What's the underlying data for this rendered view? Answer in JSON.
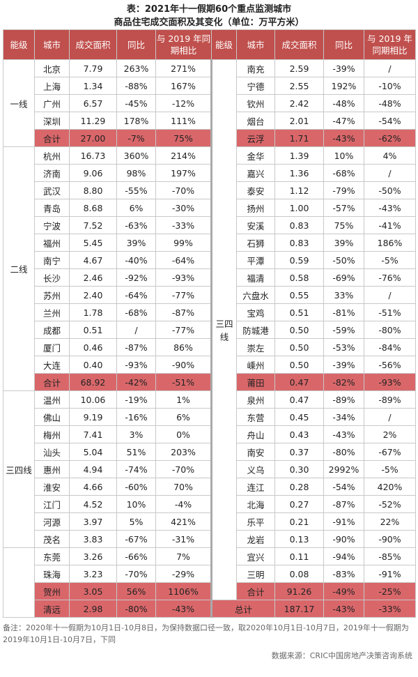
{
  "title": [
    "表：2021年十一假期60个重点监测城市",
    "商品住宅成交面积及其变化（单位：万平方米）"
  ],
  "header": [
    "能级",
    "城市",
    "成交面积",
    "同比",
    "与 2019 年同期相比"
  ],
  "left_groups": [
    {
      "level": "一线",
      "rows": [
        [
          "北京",
          "7.79",
          "263%",
          "271%"
        ],
        [
          "上海",
          "1.34",
          "-88%",
          "167%"
        ],
        [
          "广州",
          "6.57",
          "-45%",
          "-12%"
        ],
        [
          "深圳",
          "11.29",
          "178%",
          "111%"
        ]
      ],
      "subtotal": [
        "合计",
        "27.00",
        "-7%",
        "75%"
      ]
    },
    {
      "level": "二线",
      "rows": [
        [
          "杭州",
          "16.73",
          "360%",
          "214%"
        ],
        [
          "济南",
          "9.06",
          "98%",
          "197%"
        ],
        [
          "武汉",
          "8.80",
          "-55%",
          "-70%"
        ],
        [
          "青岛",
          "8.68",
          "6%",
          "-30%"
        ],
        [
          "宁波",
          "7.52",
          "-63%",
          "-33%"
        ],
        [
          "福州",
          "5.45",
          "39%",
          "99%"
        ],
        [
          "南宁",
          "4.67",
          "-40%",
          "-64%"
        ],
        [
          "长沙",
          "2.46",
          "-92%",
          "-93%"
        ],
        [
          "苏州",
          "2.40",
          "-64%",
          "-77%"
        ],
        [
          "兰州",
          "1.78",
          "-68%",
          "-87%"
        ],
        [
          "成都",
          "0.51",
          "/",
          "-77%"
        ],
        [
          "厦门",
          "0.46",
          "-87%",
          "86%"
        ],
        [
          "大连",
          "0.40",
          "-93%",
          "-90%"
        ]
      ],
      "subtotal": [
        "合计",
        "68.92",
        "-42%",
        "-51%"
      ]
    },
    {
      "level": "三四线",
      "rows": [
        [
          "温州",
          "10.06",
          "-19%",
          "1%"
        ],
        [
          "佛山",
          "9.19",
          "-16%",
          "6%"
        ],
        [
          "梅州",
          "7.41",
          "3%",
          "0%"
        ],
        [
          "汕头",
          "5.04",
          "51%",
          "203%"
        ],
        [
          "惠州",
          "4.94",
          "-74%",
          "-70%"
        ],
        [
          "淮安",
          "4.66",
          "-60%",
          "70%"
        ],
        [
          "江门",
          "4.52",
          "10%",
          "-4%"
        ],
        [
          "河源",
          "3.97",
          "5%",
          "421%"
        ],
        [
          "茂名",
          "3.83",
          "-67%",
          "-31%"
        ]
      ]
    },
    {
      "rows": [
        [
          "东莞",
          "3.26",
          "-66%",
          "7%"
        ],
        [
          "珠海",
          "3.23",
          "-70%",
          "-29%"
        ],
        [
          "贺州",
          "3.05",
          "56%",
          "1106%"
        ],
        [
          "清远",
          "2.98",
          "-80%",
          "-43%"
        ]
      ]
    }
  ],
  "right_groups": [
    {
      "level": "三四线",
      "rows": [
        [
          "南充",
          "2.59",
          "-39%",
          "/"
        ],
        [
          "宁德",
          "2.55",
          "192%",
          "-10%"
        ],
        [
          "钦州",
          "2.42",
          "-48%",
          "-48%"
        ],
        [
          "烟台",
          "2.01",
          "-47%",
          "-54%"
        ],
        [
          "云浮",
          "1.71",
          "-43%",
          "-62%"
        ],
        [
          "金华",
          "1.39",
          "10%",
          "4%"
        ],
        [
          "嘉兴",
          "1.36",
          "-68%",
          "/"
        ],
        [
          "泰安",
          "1.12",
          "-79%",
          "-50%"
        ],
        [
          "扬州",
          "1.00",
          "-57%",
          "-43%"
        ],
        [
          "安溪",
          "0.83",
          "75%",
          "-41%"
        ],
        [
          "石狮",
          "0.83",
          "39%",
          "186%"
        ],
        [
          "平潭",
          "0.59",
          "-50%",
          "-5%"
        ],
        [
          "福清",
          "0.58",
          "-69%",
          "-76%"
        ],
        [
          "六盘水",
          "0.55",
          "33%",
          "/"
        ],
        [
          "宝鸡",
          "0.51",
          "-81%",
          "-51%"
        ],
        [
          "防城港",
          "0.50",
          "-59%",
          "-80%"
        ],
        [
          "崇左",
          "0.50",
          "-53%",
          "-84%"
        ],
        [
          "嵊州",
          "0.50",
          "-39%",
          "-56%"
        ],
        [
          "莆田",
          "0.47",
          "-82%",
          "-93%"
        ],
        [
          "泉州",
          "0.47",
          "-89%",
          "-89%"
        ],
        [
          "东营",
          "0.45",
          "-34%",
          "/"
        ],
        [
          "舟山",
          "0.43",
          "-43%",
          "2%"
        ],
        [
          "南安",
          "0.37",
          "-80%",
          "-67%"
        ],
        [
          "义乌",
          "0.30",
          "2992%",
          "-5%"
        ],
        [
          "连江",
          "0.28",
          "-54%",
          "420%"
        ],
        [
          "北海",
          "0.27",
          "-87%",
          "-52%"
        ],
        [
          "乐平",
          "0.21",
          "-91%",
          "22%"
        ],
        [
          "龙岩",
          "0.13",
          "-90%",
          "-90%"
        ],
        [
          "宜兴",
          "0.11",
          "-94%",
          "-85%"
        ],
        [
          "三明",
          "0.08",
          "-83%",
          "-91%"
        ]
      ],
      "subtotal": [
        "合计",
        "91.26",
        "-49%",
        "-25%"
      ]
    }
  ],
  "total": [
    "总计",
    "187.17",
    "-43%",
    "-33%"
  ],
  "note": "备注：2020年十一假期为10月1日-10月8日，为保持数据口径一致，取2020年10月1日-10月7日，2019年十一假期为2019年10月1日-10月7日，下同",
  "source": "数据来源：CRIC中国房地产决策咨询系统"
}
